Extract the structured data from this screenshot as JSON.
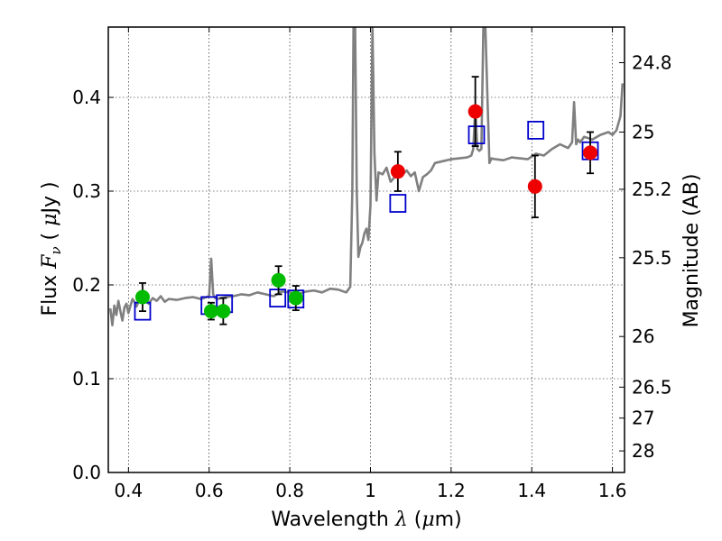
{
  "chart_data": {
    "type": "scatter",
    "title": "",
    "xlabel": "Wavelength  λ (μm)",
    "ylabel": "Flux  Fν  ( μJy )",
    "y2label": "Magnitude (AB)",
    "xlim": [
      0.35,
      1.63
    ],
    "ylim": [
      0.0,
      0.475
    ],
    "grid": true,
    "x_ticks": [
      0.4,
      0.6,
      0.8,
      1.0,
      1.2,
      1.4,
      1.6
    ],
    "x_tick_labels": [
      "0.4",
      "0.6",
      "0.8",
      "1",
      "1.2",
      "1.4",
      "1.6"
    ],
    "y_ticks": [
      0.0,
      0.1,
      0.2,
      0.3,
      0.4
    ],
    "y_tick_labels": [
      "0.0",
      "0.1",
      "0.2",
      "0.3",
      "0.4"
    ],
    "y2_ticks": [
      {
        "flux": 0.437,
        "label": "24.8"
      },
      {
        "flux": 0.363,
        "label": "25"
      },
      {
        "flux": 0.302,
        "label": "25.2"
      },
      {
        "flux": 0.229,
        "label": "25.5"
      },
      {
        "flux": 0.145,
        "label": "26"
      },
      {
        "flux": 0.091,
        "label": "26.5"
      },
      {
        "flux": 0.058,
        "label": "27"
      },
      {
        "flux": 0.023,
        "label": "28"
      }
    ],
    "colors": {
      "spectrum": "#808080",
      "green": "#00bb00",
      "red": "#ee0000",
      "model": "#0000cc",
      "errorbar": "#000000"
    },
    "spectrum": {
      "x": [
        0.355,
        0.36,
        0.365,
        0.37,
        0.375,
        0.38,
        0.385,
        0.39,
        0.395,
        0.4,
        0.405,
        0.41,
        0.415,
        0.42,
        0.43,
        0.44,
        0.45,
        0.46,
        0.47,
        0.48,
        0.49,
        0.5,
        0.52,
        0.54,
        0.56,
        0.58,
        0.6,
        0.605,
        0.61,
        0.615,
        0.62,
        0.64,
        0.66,
        0.68,
        0.7,
        0.72,
        0.74,
        0.76,
        0.78,
        0.8,
        0.82,
        0.84,
        0.86,
        0.88,
        0.9,
        0.92,
        0.94,
        0.95,
        0.955,
        0.958,
        0.962,
        0.966,
        0.97,
        0.975,
        0.98,
        0.985,
        0.99,
        0.995,
        1.0,
        1.005,
        1.01,
        1.015,
        1.02,
        1.03,
        1.04,
        1.05,
        1.06,
        1.07,
        1.08,
        1.09,
        1.1,
        1.11,
        1.12,
        1.13,
        1.14,
        1.15,
        1.16,
        1.18,
        1.2,
        1.22,
        1.24,
        1.25,
        1.255,
        1.26,
        1.265,
        1.27,
        1.275,
        1.28,
        1.285,
        1.29,
        1.295,
        1.3,
        1.31,
        1.33,
        1.35,
        1.37,
        1.39,
        1.41,
        1.43,
        1.45,
        1.47,
        1.49,
        1.5,
        1.505,
        1.51,
        1.515,
        1.52,
        1.53,
        1.55,
        1.57,
        1.59,
        1.6,
        1.61,
        1.62,
        1.625
      ],
      "y": [
        0.175,
        0.157,
        0.178,
        0.168,
        0.183,
        0.172,
        0.162,
        0.176,
        0.18,
        0.17,
        0.178,
        0.185,
        0.182,
        0.177,
        0.188,
        0.184,
        0.18,
        0.186,
        0.183,
        0.188,
        0.182,
        0.185,
        0.184,
        0.186,
        0.187,
        0.185,
        0.188,
        0.228,
        0.19,
        0.186,
        0.185,
        0.187,
        0.188,
        0.19,
        0.189,
        0.192,
        0.19,
        0.188,
        0.193,
        0.192,
        0.19,
        0.193,
        0.194,
        0.192,
        0.196,
        0.195,
        0.192,
        0.198,
        0.3,
        0.475,
        0.475,
        0.3,
        0.23,
        0.24,
        0.245,
        0.255,
        0.26,
        0.248,
        0.285,
        0.475,
        0.34,
        0.29,
        0.32,
        0.318,
        0.325,
        0.31,
        0.315,
        0.32,
        0.318,
        0.322,
        0.316,
        0.32,
        0.3,
        0.315,
        0.318,
        0.322,
        0.33,
        0.332,
        0.334,
        0.335,
        0.336,
        0.338,
        0.345,
        0.39,
        0.345,
        0.343,
        0.345,
        0.475,
        0.475,
        0.4,
        0.33,
        0.335,
        0.334,
        0.333,
        0.336,
        0.335,
        0.334,
        0.34,
        0.338,
        0.345,
        0.35,
        0.346,
        0.352,
        0.395,
        0.35,
        0.355,
        0.352,
        0.358,
        0.355,
        0.36,
        0.363,
        0.36,
        0.365,
        0.38,
        0.415
      ]
    },
    "green_points": {
      "x": [
        0.435,
        0.605,
        0.635,
        0.772,
        0.815
      ],
      "y": [
        0.187,
        0.172,
        0.172,
        0.205,
        0.186
      ],
      "err": [
        0.015,
        0.009,
        0.014,
        0.015,
        0.013
      ]
    },
    "red_points": {
      "x": [
        1.068,
        1.26,
        1.408,
        1.545
      ],
      "y": [
        0.321,
        0.385,
        0.305,
        0.341
      ],
      "err": [
        0.021,
        0.037,
        0.033,
        0.022
      ]
    },
    "model_points": {
      "x": [
        0.435,
        0.6,
        0.638,
        0.77,
        0.815,
        1.068,
        1.263,
        1.41,
        1.545
      ],
      "y": [
        0.172,
        0.178,
        0.18,
        0.186,
        0.185,
        0.287,
        0.36,
        0.365,
        0.343
      ]
    }
  }
}
